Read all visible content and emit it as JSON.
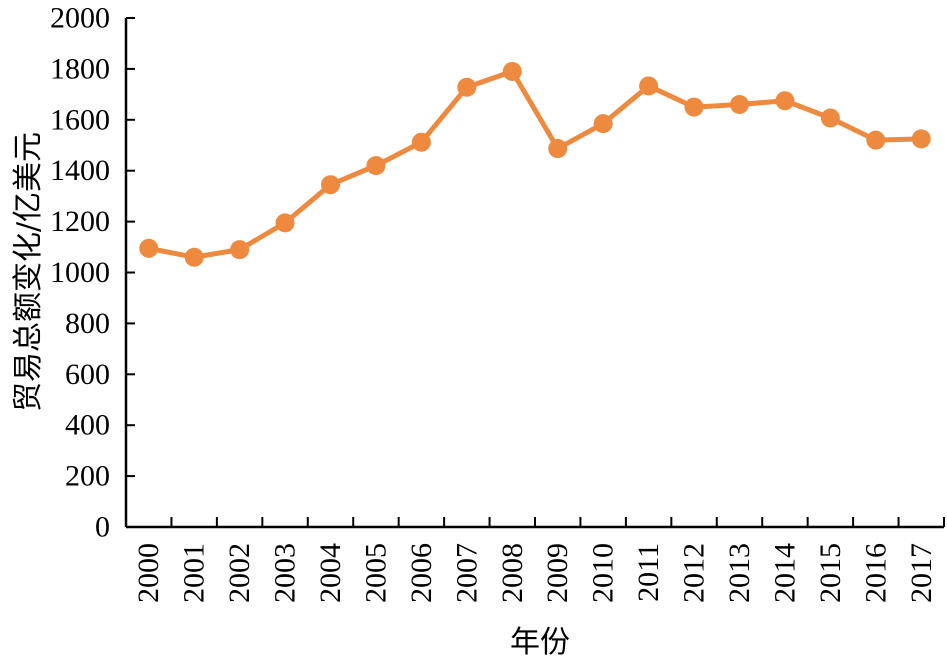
{
  "chart_data": {
    "type": "line",
    "title": "",
    "xlabel": "年份",
    "ylabel": "贸易总额变化/亿美元",
    "ylim": [
      0,
      2000
    ],
    "yticks": [
      "0",
      "200",
      "400",
      "600",
      "800",
      "1000",
      "1200",
      "1400",
      "1600",
      "1800",
      "2000"
    ],
    "grid": false,
    "legend": "none",
    "categories": [
      "2000",
      "2001",
      "2002",
      "2003",
      "2004",
      "2005",
      "2006",
      "2007",
      "2008",
      "2009",
      "2010",
      "2011",
      "2012",
      "2013",
      "2014",
      "2015",
      "2016",
      "2017"
    ],
    "series": [
      {
        "values": [
          1095,
          1060,
          1090,
          1195,
          1345,
          1420,
          1512,
          1728,
          1790,
          1487,
          1585,
          1733,
          1650,
          1660,
          1675,
          1607,
          1520,
          1525
        ],
        "color": "#ED8A3F"
      }
    ]
  }
}
